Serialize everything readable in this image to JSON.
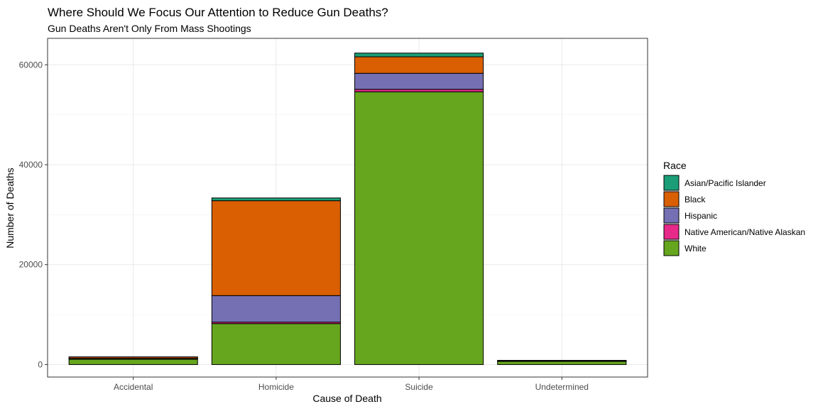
{
  "chart_data": {
    "type": "bar",
    "stacked": true,
    "title": "Where Should We Focus Our Attention to Reduce Gun Deaths?",
    "subtitle": "Gun Deaths Aren't Only From Mass Shootings",
    "xlabel": "Cause of Death",
    "ylabel": "Number of Deaths",
    "categories": [
      "Accidental",
      "Homicide",
      "Suicide",
      "Undetermined"
    ],
    "ylim": [
      -2500,
      65300
    ],
    "yticks": [
      0,
      20000,
      40000,
      60000
    ],
    "ytick_labels": [
      "0",
      "20000",
      "40000",
      "60000"
    ],
    "grid": true,
    "legend": {
      "title": "Race",
      "position": "right"
    },
    "series": [
      {
        "name": "White",
        "color": "#66A61E",
        "values": [
          1060,
          8200,
          54600,
          640
        ]
      },
      {
        "name": "Native American/Native Alaskan",
        "color": "#E7298A",
        "values": [
          30,
          300,
          500,
          15
        ]
      },
      {
        "name": "Hispanic",
        "color": "#7570B3",
        "values": [
          140,
          5300,
          3200,
          40
        ]
      },
      {
        "name": "Black",
        "color": "#D95F02",
        "values": [
          300,
          19000,
          3300,
          140
        ]
      },
      {
        "name": "Asian/Pacific Islander",
        "color": "#1B9E77",
        "values": [
          10,
          550,
          750,
          10
        ]
      }
    ],
    "legend_order": [
      "Asian/Pacific Islander",
      "Black",
      "Hispanic",
      "Native American/Native Alaskan",
      "White"
    ]
  }
}
